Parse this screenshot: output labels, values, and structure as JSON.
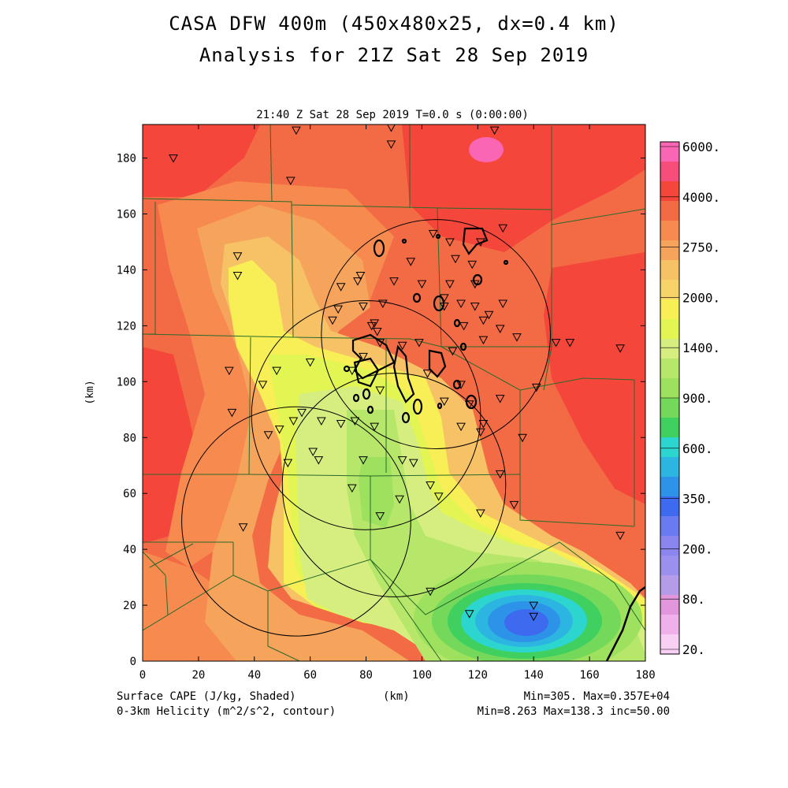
{
  "title_line1": "CASA DFW 400m (450x480x25, dx=0.4 km)",
  "title_line2": "Analysis for 21Z Sat 28 Sep 2019",
  "subtitle": "21:40 Z Sat 28 Sep 2019    T=0.0 s (0:00:00)",
  "footer": {
    "left_line1": "Surface CAPE (J/kg, Shaded)",
    "left_line2": "0-3km Helicity (m^2/s^2, contour)",
    "center": "(km)",
    "right_line1": "Min=305. Max=0.357E+04",
    "right_line2": "Min=8.263 Max=138.3 inc=50.00"
  },
  "colors": {
    "red": "#f4463a",
    "orange_red": "#f36b45",
    "orange": "#f68a4f",
    "light_orange": "#f6a35b",
    "tan": "#f7c265",
    "yellow": "#f8ee55",
    "yellow_green": "#e2f552",
    "pale_green": "#d6ee80",
    "green1": "#b7e76a",
    "green2": "#9de15e",
    "green3": "#74d85a",
    "cyan": "#2cd6cf",
    "blue1": "#2c93e8",
    "blue2": "#3e6af0",
    "county_line": "#2a6a2a",
    "pink": "#fa66b4"
  },
  "chart_data": {
    "type": "heatmap",
    "title": "Surface CAPE (J/kg, Shaded)",
    "xlabel": "(km)",
    "ylabel": "(km)",
    "xlim": [
      0,
      180
    ],
    "ylim": [
      0,
      192
    ],
    "x_ticks": [
      "0",
      "20",
      "40",
      "60",
      "80",
      "100",
      "120",
      "140",
      "160",
      "180"
    ],
    "y_ticks": [
      "0",
      "20",
      "40",
      "60",
      "80",
      "100",
      "120",
      "140",
      "160",
      "180"
    ],
    "colorbar_labels": [
      "6000.",
      "4000.",
      "2750.",
      "2000.",
      "1400.",
      "900.",
      "600.",
      "350.",
      "200.",
      "80.",
      "20."
    ],
    "colorbar_colors": [
      "#fa66b4",
      "#f64d7a",
      "#f4463a",
      "#f36b45",
      "#f68a4f",
      "#f6a35b",
      "#f7c265",
      "#f8d36a",
      "#f8ee55",
      "#e2f552",
      "#d6ee80",
      "#b7e76a",
      "#9de15e",
      "#74d85a",
      "#40d060",
      "#2cd6cf",
      "#2cb5e0",
      "#2c93e8",
      "#3e6af0",
      "#6a7af0",
      "#8a86ee",
      "#9c90ee",
      "#b49ce8",
      "#e296dc",
      "#f0b0ea",
      "#f8d0f4"
    ],
    "cape_min": 305,
    "cape_max": 3570,
    "helicity_min": 8.263,
    "helicity_max": 138.3,
    "helicity_inc": 50.0,
    "radar_rings": [
      {
        "center": [
          105,
          117
        ],
        "radius": 41
      },
      {
        "center": [
          80,
          88
        ],
        "radius": 41
      },
      {
        "center": [
          55,
          50
        ],
        "radius": 41
      },
      {
        "center": [
          90,
          63
        ],
        "radius": 40
      }
    ],
    "stations": [
      [
        89,
        191
      ],
      [
        55,
        190
      ],
      [
        126,
        190
      ],
      [
        89,
        185
      ],
      [
        11,
        180
      ],
      [
        53,
        172
      ],
      [
        129,
        155
      ],
      [
        104,
        153
      ],
      [
        110,
        150
      ],
      [
        121,
        150
      ],
      [
        112,
        144
      ],
      [
        96,
        143
      ],
      [
        34,
        145
      ],
      [
        118,
        142
      ],
      [
        34,
        138
      ],
      [
        78,
        138
      ],
      [
        77,
        136
      ],
      [
        90,
        136
      ],
      [
        100,
        135
      ],
      [
        110,
        135
      ],
      [
        119,
        135
      ],
      [
        71,
        134
      ],
      [
        86,
        128
      ],
      [
        108,
        130
      ],
      [
        114,
        128
      ],
      [
        129,
        128
      ],
      [
        119,
        127
      ],
      [
        108,
        127
      ],
      [
        124,
        124
      ],
      [
        70,
        126
      ],
      [
        79,
        127
      ],
      [
        122,
        122
      ],
      [
        115,
        120
      ],
      [
        82,
        120
      ],
      [
        68,
        122
      ],
      [
        83,
        121
      ],
      [
        128,
        119
      ],
      [
        122,
        115
      ],
      [
        134,
        116
      ],
      [
        148,
        114
      ],
      [
        153,
        114
      ],
      [
        85,
        114
      ],
      [
        84,
        118
      ],
      [
        99,
        114
      ],
      [
        93,
        113
      ],
      [
        111,
        111
      ],
      [
        171,
        112
      ],
      [
        31,
        104
      ],
      [
        48,
        104
      ],
      [
        60,
        107
      ],
      [
        79,
        109
      ],
      [
        102,
        103
      ],
      [
        114,
        99
      ],
      [
        75,
        104
      ],
      [
        108,
        93
      ],
      [
        117,
        92
      ],
      [
        128,
        94
      ],
      [
        141,
        98
      ],
      [
        43,
        99
      ],
      [
        85,
        97
      ],
      [
        32,
        89
      ],
      [
        57,
        89
      ],
      [
        54,
        86
      ],
      [
        122,
        85
      ],
      [
        136,
        80
      ],
      [
        64,
        86
      ],
      [
        114,
        84
      ],
      [
        76,
        86
      ],
      [
        71,
        85
      ],
      [
        83,
        84
      ],
      [
        49,
        83
      ],
      [
        121,
        82
      ],
      [
        45,
        81
      ],
      [
        97,
        71
      ],
      [
        93,
        72
      ],
      [
        75,
        62
      ],
      [
        103,
        63
      ],
      [
        106,
        59
      ],
      [
        121,
        53
      ],
      [
        92,
        58
      ],
      [
        128,
        67
      ],
      [
        133,
        56
      ],
      [
        61,
        75
      ],
      [
        63,
        72
      ],
      [
        52,
        71
      ],
      [
        79,
        72
      ],
      [
        85,
        52
      ],
      [
        36,
        48
      ],
      [
        171,
        45
      ],
      [
        103,
        25
      ],
      [
        117,
        17
      ],
      [
        140,
        20
      ],
      [
        140,
        16
      ]
    ]
  }
}
